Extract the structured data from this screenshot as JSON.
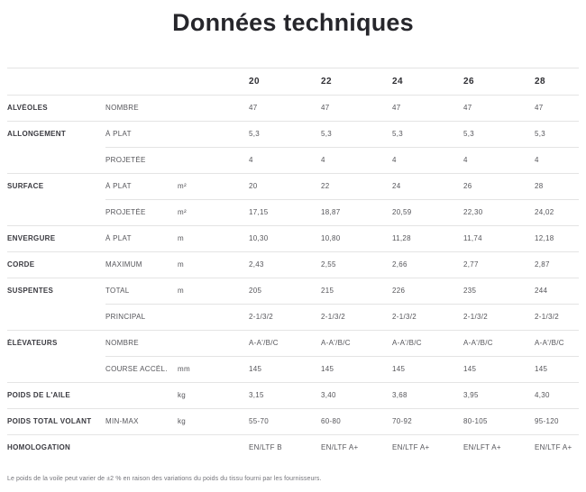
{
  "page": {
    "title": "Données techniques",
    "footnote": "Le poids de la voile peut varier de ±2 % en raison des variations du poids du tissu fourni par les fournisseurs."
  },
  "table": {
    "sizes": [
      "20",
      "22",
      "24",
      "26",
      "28"
    ],
    "rows": [
      {
        "group": "ALVÉOLES",
        "label": "NOMBRE",
        "unit": "",
        "values": [
          "47",
          "47",
          "47",
          "47",
          "47"
        ]
      },
      {
        "group": "ALLONGEMENT",
        "label": "À PLAT",
        "unit": "",
        "values": [
          "5,3",
          "5,3",
          "5,3",
          "5,3",
          "5,3"
        ]
      },
      {
        "group": "",
        "label": "PROJETÉE",
        "unit": "",
        "values": [
          "4",
          "4",
          "4",
          "4",
          "4"
        ]
      },
      {
        "group": "SURFACE",
        "label": "À PLAT",
        "unit": "m²",
        "values": [
          "20",
          "22",
          "24",
          "26",
          "28"
        ]
      },
      {
        "group": "",
        "label": "PROJETÉE",
        "unit": "m²",
        "values": [
          "17,15",
          "18,87",
          "20,59",
          "22,30",
          "24,02"
        ]
      },
      {
        "group": "ENVERGURE",
        "label": "À PLAT",
        "unit": "m",
        "values": [
          "10,30",
          "10,80",
          "11,28",
          "11,74",
          "12,18"
        ]
      },
      {
        "group": "CORDE",
        "label": "MAXIMUM",
        "unit": "m",
        "values": [
          "2,43",
          "2,55",
          "2,66",
          "2,77",
          "2,87"
        ]
      },
      {
        "group": "SUSPENTES",
        "label": "TOTAL",
        "unit": "m",
        "values": [
          "205",
          "215",
          "226",
          "235",
          "244"
        ]
      },
      {
        "group": "",
        "label": "PRINCIPAL",
        "unit": "",
        "values": [
          "2-1/3/2",
          "2-1/3/2",
          "2-1/3/2",
          "2-1/3/2",
          "2-1/3/2"
        ]
      },
      {
        "group": "ÉLÉVATEURS",
        "label": "NOMBRE",
        "unit": "",
        "values": [
          "A-A'/B/C",
          "A-A'/B/C",
          "A-A'/B/C",
          "A-A'/B/C",
          "A-A'/B/C"
        ]
      },
      {
        "group": "",
        "label": "COURSE ACCÉL.",
        "unit": "mm",
        "values": [
          "145",
          "145",
          "145",
          "145",
          "145"
        ]
      },
      {
        "group": "POIDS DE L'AILE",
        "label": "",
        "unit": "kg",
        "values": [
          "3,15",
          "3,40",
          "3,68",
          "3,95",
          "4,30"
        ]
      },
      {
        "group": "POIDS TOTAL VOLANT",
        "label": "MIN-MAX",
        "unit": "kg",
        "values": [
          "55-70",
          "60-80",
          "70-92",
          "80-105",
          "95-120"
        ]
      },
      {
        "group": "HOMOLOGATION",
        "label": "",
        "unit": "",
        "values": [
          "EN/LTF B",
          "EN/LTF A+",
          "EN/LTF A+",
          "EN/LFT A+",
          "EN/LTF A+"
        ]
      }
    ]
  }
}
